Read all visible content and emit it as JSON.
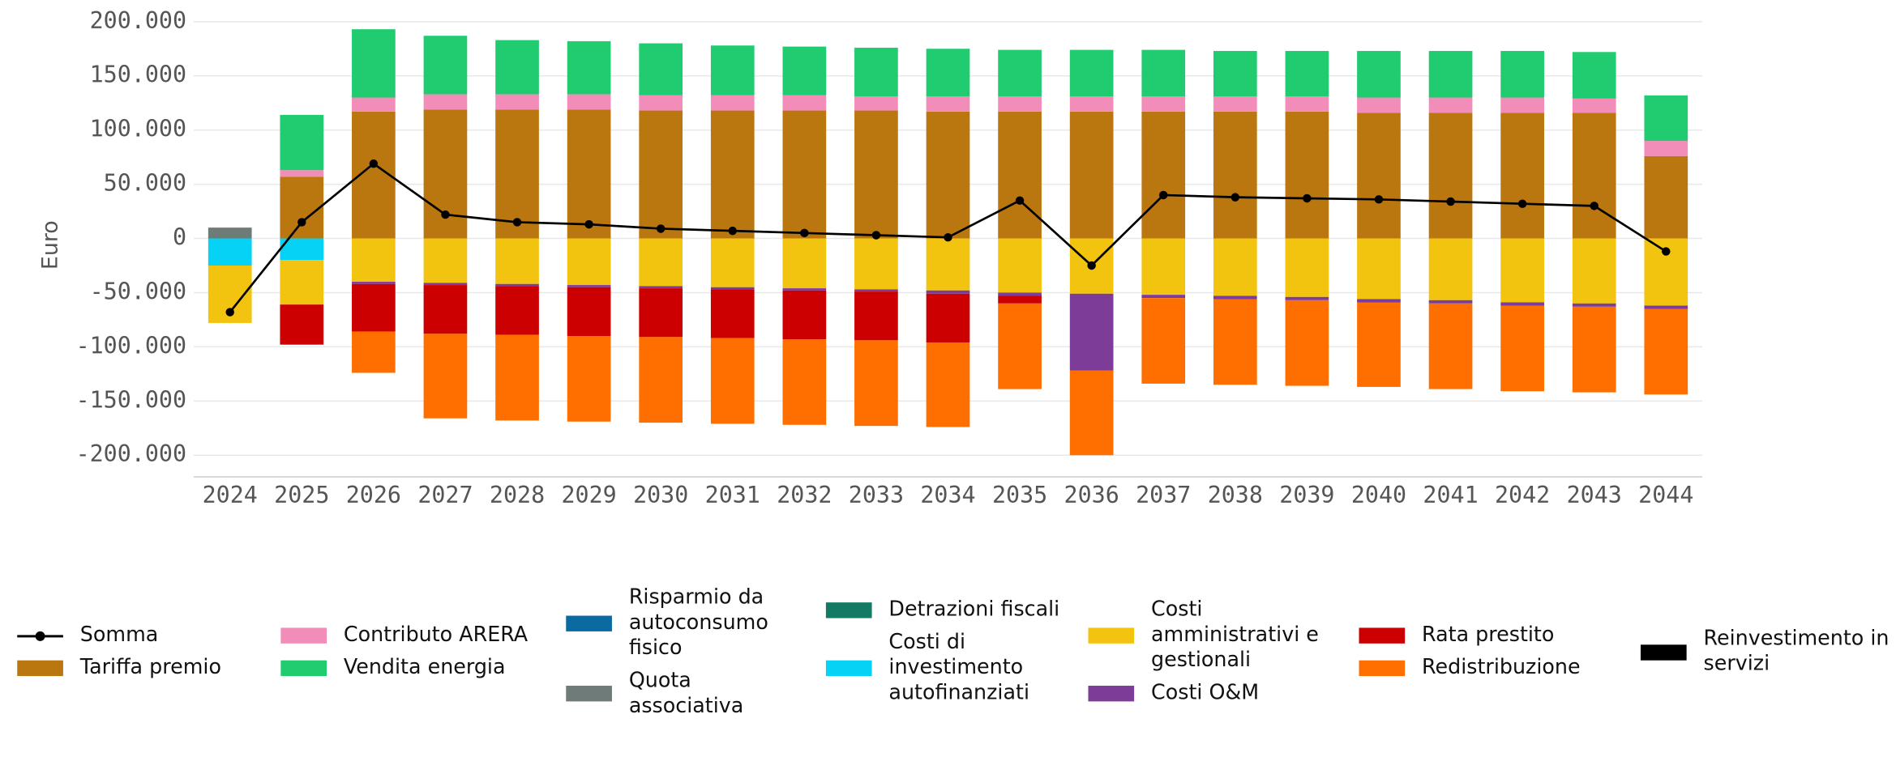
{
  "chart_data": {
    "type": "bar",
    "stacked": true,
    "y_label": "Euro",
    "categories": [
      "2024",
      "2025",
      "2026",
      "2027",
      "2028",
      "2029",
      "2030",
      "2031",
      "2032",
      "2033",
      "2034",
      "2035",
      "2036",
      "2037",
      "2038",
      "2039",
      "2040",
      "2041",
      "2042",
      "2043",
      "2044"
    ],
    "ylim": [
      -220000,
      220000
    ],
    "yticks": [
      {
        "value": 200000,
        "label": "200.000"
      },
      {
        "value": 150000,
        "label": "150.000"
      },
      {
        "value": 100000,
        "label": "100.000"
      },
      {
        "value": 50000,
        "label": "50.000"
      },
      0,
      {
        "value": -50000,
        "label": "-50.000"
      },
      {
        "value": -100000,
        "label": "-100.000"
      },
      {
        "value": -150000,
        "label": "-150.000"
      },
      {
        "value": -200000,
        "label": "-200.000"
      }
    ],
    "grid": true,
    "series": [
      {
        "name": "Somma",
        "type": "line",
        "color": "#000000",
        "values": [
          -68000,
          15000,
          69000,
          22000,
          15000,
          13000,
          9000,
          7000,
          5000,
          3000,
          1000,
          35000,
          -25000,
          40000,
          38000,
          37000,
          36000,
          34000,
          32000,
          30000,
          -12000
        ]
      },
      {
        "name": "Tariffa premio",
        "color": "#bb770f",
        "values": [
          0,
          57000,
          117000,
          119000,
          119000,
          119000,
          118000,
          118000,
          118000,
          118000,
          117000,
          117000,
          117000,
          117000,
          117000,
          117000,
          116000,
          116000,
          116000,
          116000,
          76000
        ]
      },
      {
        "name": "Contributo ARERA",
        "color": "#f28cb8",
        "values": [
          0,
          6000,
          13000,
          14000,
          14000,
          14000,
          14000,
          14000,
          14000,
          13000,
          14000,
          14000,
          14000,
          14000,
          14000,
          14000,
          14000,
          14000,
          14000,
          13000,
          14000
        ]
      },
      {
        "name": "Vendita energia",
        "color": "#21cc70",
        "values": [
          0,
          51000,
          63000,
          54000,
          50000,
          49000,
          48000,
          46000,
          45000,
          45000,
          44000,
          43000,
          43000,
          43000,
          42000,
          42000,
          43000,
          43000,
          43000,
          43000,
          42000
        ]
      },
      {
        "name": "Risparmio da autoconsumo fisico",
        "color": "#0b6aa0",
        "values": [
          0,
          0,
          0,
          0,
          0,
          0,
          0,
          0,
          0,
          0,
          0,
          0,
          0,
          0,
          0,
          0,
          0,
          0,
          0,
          0,
          0
        ]
      },
      {
        "name": "Quota associativa",
        "color": "#6f7b78",
        "values": [
          10000,
          0,
          0,
          0,
          0,
          0,
          0,
          0,
          0,
          0,
          0,
          0,
          0,
          0,
          0,
          0,
          0,
          0,
          0,
          0,
          0
        ]
      },
      {
        "name": "Detrazioni fiscali",
        "color": "#137a63",
        "values": [
          0,
          0,
          0,
          0,
          0,
          0,
          0,
          0,
          0,
          0,
          0,
          0,
          0,
          0,
          0,
          0,
          0,
          0,
          0,
          0,
          0
        ]
      },
      {
        "name": "Costi di investimento autofinanziati",
        "color": "#05d2f5",
        "values": [
          -25000,
          -20000,
          0,
          0,
          0,
          0,
          0,
          0,
          0,
          0,
          0,
          0,
          0,
          0,
          0,
          0,
          0,
          0,
          0,
          0,
          0
        ]
      },
      {
        "name": "Costi amministrativi e gestionali",
        "color": "#f2c40f",
        "values": [
          -53000,
          -41000,
          -40000,
          -41000,
          -42000,
          -43000,
          -44000,
          -45000,
          -46000,
          -47000,
          -48000,
          -50000,
          -51000,
          -52000,
          -53000,
          -54000,
          -56000,
          -57000,
          -59000,
          -60000,
          -62000
        ]
      },
      {
        "name": "Costi O&M",
        "color": "#7d3c98",
        "values": [
          0,
          0,
          -2000,
          -2000,
          -2000,
          -2000,
          -2000,
          -2000,
          -2000,
          -2000,
          -3000,
          -3000,
          -71000,
          -3000,
          -3000,
          -3000,
          -3000,
          -3000,
          -3000,
          -3000,
          -3000
        ]
      },
      {
        "name": "Rata prestito",
        "color": "#cc0000",
        "values": [
          0,
          -37000,
          -44000,
          -45000,
          -45000,
          -45000,
          -45000,
          -45000,
          -45000,
          -45000,
          -45000,
          -7000,
          0,
          0,
          0,
          0,
          0,
          0,
          0,
          0,
          0
        ]
      },
      {
        "name": "Redistribuzione",
        "color": "#ff6f00",
        "values": [
          0,
          0,
          -38000,
          -78000,
          -79000,
          -79000,
          -79000,
          -79000,
          -79000,
          -79000,
          -78000,
          -79000,
          -78000,
          -79000,
          -79000,
          -79000,
          -78000,
          -79000,
          -79000,
          -79000,
          -79000
        ]
      },
      {
        "name": "Reinvestimento in servizi",
        "color": "#000000",
        "values": [
          0,
          0,
          0,
          0,
          0,
          0,
          0,
          0,
          0,
          0,
          0,
          0,
          0,
          0,
          0,
          0,
          0,
          0,
          0,
          0,
          0
        ]
      }
    ]
  }
}
